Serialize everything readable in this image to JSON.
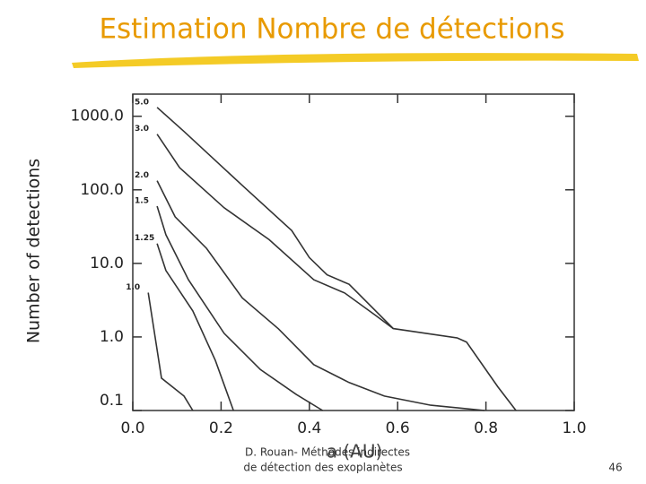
{
  "slide": {
    "title": "Estimation Nombre de détections",
    "footer": [
      "D. Rouan- Méthodes indirectes",
      "de détection des exoplanètes"
    ],
    "page_number": "46"
  },
  "chart_data": {
    "type": "line",
    "log_y": true,
    "color": "#333333",
    "y_label": "Number of detections",
    "x_label": "a (AU)",
    "xlim": [
      0,
      1
    ],
    "xticks": [
      {
        "value": 0,
        "label": "0.0"
      },
      {
        "value": 0.2,
        "label": "0.2"
      },
      {
        "value": 0.4,
        "label": "0.4"
      },
      {
        "value": 0.6,
        "label": "0.6"
      },
      {
        "value": 0.8,
        "label": "0.8"
      },
      {
        "value": 1,
        "label": "1.0"
      }
    ],
    "ylim": [
      0.1,
      2000
    ],
    "yticks": [
      {
        "value": 0.1,
        "label": "0.1"
      },
      {
        "value": 1,
        "label": "1.0"
      },
      {
        "value": 10,
        "label": "10.0"
      },
      {
        "value": 100,
        "label": "100.0"
      },
      {
        "value": 1000,
        "label": "1000.0"
      }
    ],
    "series": [
      {
        "name": "5.0",
        "x": [
          0.055,
          0.116,
          0.248,
          0.36,
          0.4,
          0.44,
          0.49,
          0.59,
          0.735,
          0.756,
          0.827,
          0.868
        ],
        "values": [
          1320,
          620,
          115,
          28,
          12,
          7,
          5.2,
          1.3,
          0.97,
          0.85,
          0.21,
          0.1
        ]
      },
      {
        "name": "3.0",
        "x": [
          0.055,
          0.106,
          0.207,
          0.309,
          0.41,
          0.48,
          0.55,
          0.59
        ],
        "values": [
          570,
          200,
          57,
          21,
          6,
          3.96,
          1.96,
          1.3
        ]
      },
      {
        "name": "2.0",
        "x": [
          0.055,
          0.096,
          0.167,
          0.248,
          0.33,
          0.41,
          0.49,
          0.57,
          0.675,
          0.797
        ],
        "values": [
          133,
          43,
          16,
          3.4,
          1.29,
          0.42,
          0.24,
          0.157,
          0.118,
          0.1
        ]
      },
      {
        "name": "1.5",
        "x": [
          0.055,
          0.075,
          0.126,
          0.207,
          0.289,
          0.37,
          0.43
        ],
        "values": [
          60,
          24.5,
          6,
          1.12,
          0.36,
          0.166,
          0.1
        ]
      },
      {
        "name": "1.25",
        "x": [
          0.055,
          0.075,
          0.136,
          0.187,
          0.228
        ],
        "values": [
          18.6,
          8,
          2.26,
          0.48,
          0.1
        ]
      },
      {
        "name": "1.0",
        "x": [
          0.035,
          0.065,
          0.116,
          0.136
        ],
        "values": [
          4,
          0.275,
          0.157,
          0.1
        ]
      }
    ]
  }
}
